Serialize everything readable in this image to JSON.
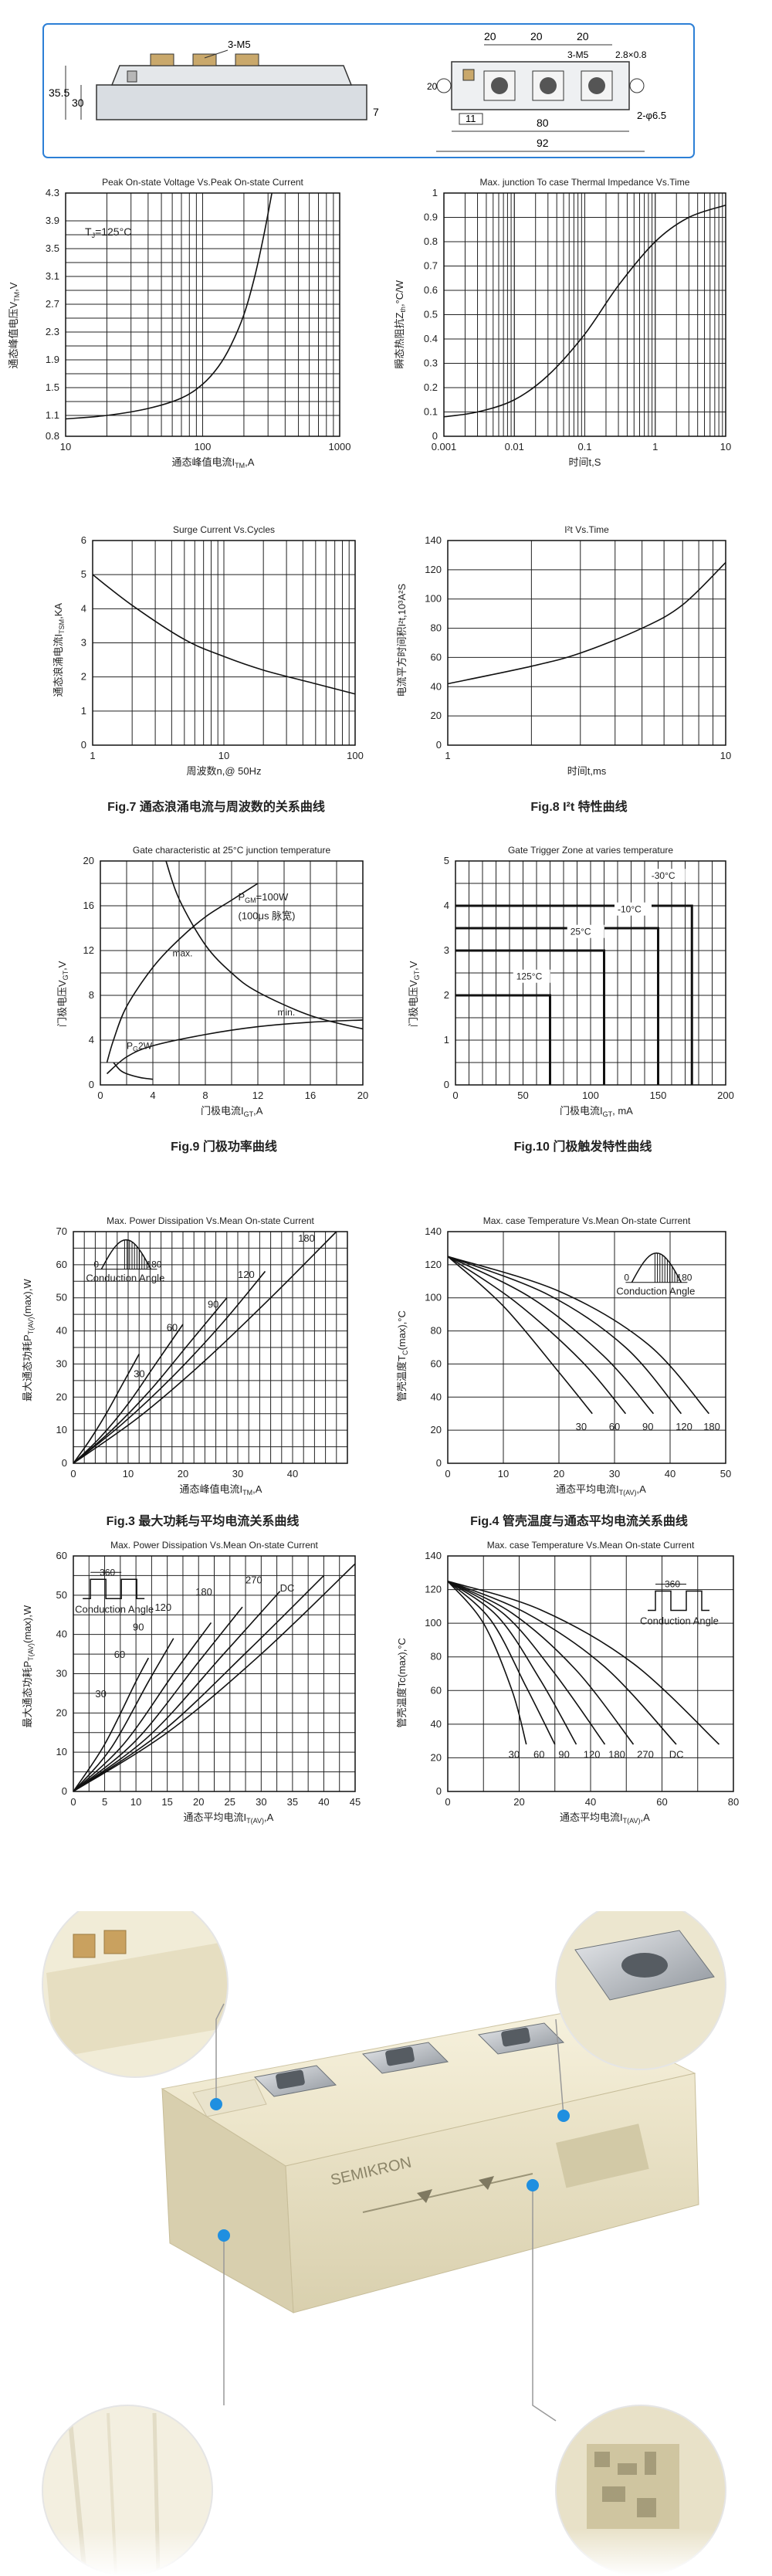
{
  "drawing": {
    "dims_h_left": "35.5",
    "dims_h_inner": "30",
    "screw_label": "3-M5",
    "screw_label2": "3-M5",
    "top_dims": [
      "20",
      "20",
      "20"
    ],
    "hole_spec": "2.8×0.8",
    "h20": "20",
    "h_seven": "7",
    "d_eleven": "11",
    "d_eighty": "80",
    "d_ninetytwo": "92",
    "hole_dia": "2-φ6.5"
  },
  "charts": {
    "c1": {
      "title": "Peak On-state Voltage Vs.Peak On-state Current",
      "ylabel": "通态峰值电压V",
      "ylabel_sub": "TM",
      "ylabel_unit": ",V",
      "xlabel": "通态峰值电流I",
      "xlabel_sub": "TM",
      "xlabel_unit": ",A",
      "annotation": "T",
      "annotation_sub": "J",
      "annotation_rest": "=125°C",
      "yticks": [
        "4.3",
        "3.9",
        "3.5",
        "3.1",
        "2.7",
        "2.3",
        "1.9",
        "1.5",
        "1.1",
        "0.8"
      ],
      "xticks": [
        "10",
        "100",
        "1000"
      ]
    },
    "c2": {
      "title": "Max. junction To case Thermal Impedance Vs.Time",
      "ylabel": "瞬态热阻抗Z",
      "ylabel_sub": "th",
      "ylabel_unit": ",°C/W",
      "xlabel": "时间t,S",
      "yticks": [
        "1",
        "0.9",
        "0.8",
        "0.7",
        "0.6",
        "0.5",
        "0.4",
        "0.3",
        "0.2",
        "0.1",
        "0"
      ],
      "xticks": [
        "0.001",
        "0.01",
        "0.1",
        "1",
        "10"
      ]
    },
    "c3": {
      "title": "Surge Current Vs.Cycles",
      "ylabel": "通态浪涌电流I",
      "ylabel_sub": "TSM",
      "ylabel_unit": ",KA",
      "xlabel": "周波数n,@ 50Hz",
      "yticks": [
        "6",
        "5",
        "4",
        "3",
        "2",
        "1",
        "0"
      ],
      "xticks": [
        "1",
        "10",
        "100"
      ],
      "caption": "Fig.7 通态浪涌电流与周波数的关系曲线"
    },
    "c4": {
      "title": "I²t Vs.Time",
      "ylabel": "电流平方时间积I²t,10³A²S",
      "xlabel": "时间t,ms",
      "yticks": [
        "140",
        "120",
        "100",
        "80",
        "60",
        "40",
        "20",
        "0"
      ],
      "xticks": [
        "1",
        "10"
      ],
      "caption": "Fig.8 I²t 特性曲线"
    },
    "c5": {
      "title": "Gate characteristic at 25°C junction temperature",
      "ylabel": "门极电压V",
      "ylabel_sub": "GT",
      "ylabel_unit": ",V",
      "xlabel": "门极电流I",
      "xlabel_sub": "GT",
      "xlabel_unit": ",A",
      "yticks": [
        "20",
        "16",
        "12",
        "8",
        "4",
        "0"
      ],
      "xticks": [
        "0",
        "4",
        "8",
        "12",
        "16",
        "20"
      ],
      "label_pgm": "P",
      "label_pgm_sub": "GM",
      "label_pgm_rest": "=100W",
      "label_pgm2": "(100μs 脉宽)",
      "label_max": "max.",
      "label_min": "min.",
      "label_pg": "P",
      "label_pg_sub": "G",
      "label_pg_rest": "2W",
      "caption": "Fig.9 门极功率曲线"
    },
    "c6": {
      "title": "Gate Trigger Zone at varies temperature",
      "ylabel": "门极电压V",
      "ylabel_sub": "GT",
      "ylabel_unit": ",V",
      "xlabel": "门极电流I",
      "xlabel_sub": "GT",
      "xlabel_unit": ", mA",
      "yticks": [
        "5",
        "4",
        "3",
        "2",
        "1",
        "0"
      ],
      "xticks": [
        "0",
        "50",
        "100",
        "150",
        "200"
      ],
      "zones": [
        "-30°C",
        "-10°C",
        "25°C",
        "125°C"
      ],
      "caption": "Fig.10 门极触发特性曲线"
    },
    "c7": {
      "title": "Max. Power Dissipation Vs.Mean On-state Current",
      "ylabel": "最大通态功耗P",
      "ylabel_sub": "T(AV)",
      "ylabel_unit": "(max),W",
      "xlabel": "通态峰值电流I",
      "xlabel_sub": "TM",
      "xlabel_unit": ",A",
      "yticks": [
        "70",
        "60",
        "50",
        "40",
        "30",
        "20",
        "10",
        "0"
      ],
      "xticks": [
        "0",
        "10",
        "20",
        "30",
        "40"
      ],
      "curve_labels": [
        "30",
        "60",
        "90",
        "120",
        "180"
      ],
      "inset_0": "0",
      "inset_180": "180",
      "inset_label": "Conduction Angle",
      "caption": "Fig.3 最大功耗与平均电流关系曲线"
    },
    "c8": {
      "title": "Max. case Temperature Vs.Mean On-state Current",
      "ylabel": "管壳温度T",
      "ylabel_sub": "C",
      "ylabel_unit": "(max),°C",
      "xlabel": "通态平均电流I",
      "xlabel_sub": "T(AV)",
      "xlabel_unit": ",A",
      "yticks": [
        "140",
        "120",
        "100",
        "80",
        "60",
        "40",
        "20",
        "0"
      ],
      "xticks": [
        "0",
        "10",
        "20",
        "30",
        "40",
        "50"
      ],
      "curve_labels": [
        "30",
        "60",
        "90",
        "120",
        "180"
      ],
      "inset_0": "0",
      "inset_180": "180",
      "inset_label": "Conduction Angle",
      "caption": "Fig.4 管壳温度与通态平均电流关系曲线"
    },
    "c9": {
      "title": "Max. Power Dissipation Vs.Mean On-state Current",
      "ylabel": "最大通态功耗P",
      "ylabel_sub": "T(AV)",
      "ylabel_unit": "(max),W",
      "xlabel": "通态平均电流I",
      "xlabel_sub": "T(AV)",
      "xlabel_unit": ",A",
      "yticks": [
        "60",
        "50",
        "40",
        "30",
        "20",
        "10",
        "0"
      ],
      "xticks": [
        "0",
        "5",
        "10",
        "15",
        "20",
        "25",
        "30",
        "35",
        "40",
        "45"
      ],
      "curve_labels": [
        "30",
        "60",
        "90",
        "120",
        "180",
        "270",
        "DC"
      ],
      "inset_360": "360",
      "inset_label": "Conduction Angle"
    },
    "c10": {
      "title": "Max. case Temperature Vs.Mean On-state Current",
      "ylabel": "管壳温度Tc(max),°C",
      "xlabel": "通态平均电流I",
      "xlabel_sub": "T(AV)",
      "xlabel_unit": ",A",
      "yticks": [
        "140",
        "120",
        "100",
        "80",
        "60",
        "40",
        "20",
        "0"
      ],
      "xticks": [
        "0",
        "20",
        "40",
        "60",
        "80"
      ],
      "curve_labels": [
        "30",
        "60",
        "90",
        "120",
        "180",
        "270",
        "DC"
      ],
      "inset_360": "360",
      "inset_label": "Conduction Angle"
    }
  },
  "photo": {
    "label_text": "SEMIKRON"
  },
  "chart_data": [
    {
      "type": "line",
      "title": "Peak On-state Voltage Vs.Peak On-state Current",
      "x_scale": "log",
      "xlim": [
        10,
        1000
      ],
      "ylim": [
        0.8,
        4.3
      ],
      "series": [
        {
          "x": [
            10,
            20,
            40,
            70,
            100,
            130,
            160,
            200,
            240,
            280,
            320
          ],
          "y": [
            1.05,
            1.1,
            1.2,
            1.35,
            1.55,
            1.8,
            2.1,
            2.55,
            3.1,
            3.7,
            4.3
          ]
        }
      ]
    },
    {
      "type": "line",
      "title": "Max. junction To case Thermal Impedance Vs.Time",
      "x_scale": "log",
      "xlim": [
        0.001,
        10
      ],
      "ylim": [
        0,
        1
      ],
      "series": [
        {
          "x": [
            0.001,
            0.003,
            0.01,
            0.03,
            0.1,
            0.3,
            1,
            3,
            10
          ],
          "y": [
            0.08,
            0.1,
            0.15,
            0.25,
            0.42,
            0.62,
            0.8,
            0.9,
            0.95
          ]
        }
      ]
    },
    {
      "type": "line",
      "title": "Surge Current Vs.Cycles",
      "x_scale": "log",
      "xlim": [
        1,
        100
      ],
      "ylim": [
        0,
        6
      ],
      "series": [
        {
          "x": [
            1,
            2,
            5,
            10,
            20,
            50,
            100
          ],
          "y": [
            5.0,
            4.1,
            3.1,
            2.6,
            2.2,
            1.8,
            1.5
          ]
        }
      ]
    },
    {
      "type": "line",
      "title": "I²t Vs.Time",
      "x_scale": "log",
      "xlim": [
        1,
        10
      ],
      "ylim": [
        0,
        140
      ],
      "series": [
        {
          "x": [
            1,
            2,
            3,
            5,
            7,
            10
          ],
          "y": [
            42,
            54,
            63,
            80,
            96,
            125
          ]
        }
      ]
    },
    {
      "type": "line",
      "title": "Gate characteristic at 25°C junction temperature",
      "xlim": [
        0,
        20
      ],
      "ylim": [
        0,
        20
      ],
      "series": [
        {
          "x": [
            0.5,
            1,
            2,
            4,
            6,
            8,
            10,
            12
          ],
          "y": [
            2,
            4,
            7,
            10.5,
            13,
            15,
            16.5,
            18
          ]
        },
        {
          "x": [
            0.5,
            2,
            4,
            8,
            12,
            16,
            20
          ],
          "y": [
            1,
            2.5,
            3.5,
            4.5,
            5.2,
            5.6,
            5.8
          ]
        },
        {
          "x": [
            5,
            6,
            8,
            10,
            12,
            16,
            20
          ],
          "y": [
            20,
            16.6,
            12.5,
            10,
            8.3,
            6.2,
            5
          ]
        },
        {
          "x": [
            1,
            1.5,
            2,
            3,
            4
          ],
          "y": [
            2,
            1.33,
            1,
            0.67,
            0.5
          ]
        }
      ]
    },
    {
      "type": "area",
      "title": "Gate Trigger Zone at varies temperature",
      "xlim": [
        0,
        200
      ],
      "ylim": [
        0,
        5
      ],
      "series": [
        {
          "name": "-30°C",
          "x": [
            0,
            175,
            175
          ],
          "y": [
            4,
            4,
            0
          ]
        },
        {
          "name": "-10°C",
          "x": [
            0,
            150,
            150
          ],
          "y": [
            3.5,
            3.5,
            0
          ]
        },
        {
          "name": "25°C",
          "x": [
            0,
            110,
            110
          ],
          "y": [
            3,
            3,
            0
          ]
        },
        {
          "name": "125°C",
          "x": [
            0,
            70,
            70
          ],
          "y": [
            2,
            2,
            0
          ]
        }
      ]
    },
    {
      "type": "line",
      "title": "Max. Power Dissipation Vs.Mean On-state Current",
      "xlim": [
        0,
        50
      ],
      "ylim": [
        0,
        70
      ],
      "series": [
        {
          "name": "30",
          "x": [
            0,
            3,
            6,
            9,
            12
          ],
          "y": [
            0,
            7,
            15,
            24,
            33
          ]
        },
        {
          "name": "60",
          "x": [
            0,
            5,
            10,
            15,
            20
          ],
          "y": [
            0,
            8,
            18,
            30,
            42
          ]
        },
        {
          "name": "90",
          "x": [
            0,
            7,
            14,
            21,
            28
          ],
          "y": [
            0,
            10,
            22,
            36,
            50
          ]
        },
        {
          "name": "120",
          "x": [
            0,
            9,
            18,
            27,
            35
          ],
          "y": [
            0,
            12,
            26,
            42,
            58
          ]
        },
        {
          "name": "180",
          "x": [
            0,
            12,
            24,
            36,
            48
          ],
          "y": [
            0,
            14,
            31,
            50,
            70
          ]
        }
      ]
    },
    {
      "type": "line",
      "title": "Max. case Temperature Vs.Mean On-state Current",
      "xlim": [
        0,
        50
      ],
      "ylim": [
        0,
        140
      ],
      "series": [
        {
          "name": "30",
          "x": [
            0,
            10,
            20,
            26
          ],
          "y": [
            125,
            95,
            55,
            30
          ]
        },
        {
          "name": "60",
          "x": [
            0,
            12,
            24,
            32
          ],
          "y": [
            125,
            98,
            62,
            30
          ]
        },
        {
          "name": "90",
          "x": [
            0,
            15,
            28,
            37
          ],
          "y": [
            125,
            100,
            65,
            30
          ]
        },
        {
          "name": "120",
          "x": [
            0,
            18,
            32,
            42
          ],
          "y": [
            125,
            102,
            70,
            30
          ]
        },
        {
          "name": "180",
          "x": [
            0,
            20,
            36,
            47
          ],
          "y": [
            125,
            104,
            72,
            30
          ]
        }
      ]
    },
    {
      "type": "line",
      "title": "Max. Power Dissipation Vs.Mean On-state Current",
      "xlim": [
        0,
        45
      ],
      "ylim": [
        0,
        60
      ],
      "series": [
        {
          "name": "30",
          "x": [
            0,
            5,
            10,
            12
          ],
          "y": [
            0,
            12,
            28,
            34
          ]
        },
        {
          "name": "60",
          "x": [
            0,
            6,
            12,
            16
          ],
          "y": [
            0,
            11,
            28,
            39
          ]
        },
        {
          "name": "90",
          "x": [
            0,
            8,
            16,
            22
          ],
          "y": [
            0,
            12,
            30,
            43
          ]
        },
        {
          "name": "120",
          "x": [
            0,
            10,
            20,
            27
          ],
          "y": [
            0,
            13,
            33,
            47
          ]
        },
        {
          "name": "180",
          "x": [
            0,
            12,
            24,
            33
          ],
          "y": [
            0,
            14,
            35,
            51
          ]
        },
        {
          "name": "270",
          "x": [
            0,
            14,
            28,
            40
          ],
          "y": [
            0,
            15,
            36,
            55
          ]
        },
        {
          "name": "DC",
          "x": [
            0,
            15,
            30,
            45
          ],
          "y": [
            0,
            15,
            35,
            58
          ]
        }
      ]
    },
    {
      "type": "line",
      "title": "Max. case Temperature Vs.Mean On-state Current",
      "xlim": [
        0,
        80
      ],
      "ylim": [
        0,
        140
      ],
      "series": [
        {
          "name": "30",
          "x": [
            0,
            10,
            18,
            22
          ],
          "y": [
            125,
            100,
            60,
            28
          ]
        },
        {
          "name": "60",
          "x": [
            0,
            12,
            22,
            30
          ],
          "y": [
            125,
            102,
            62,
            28
          ]
        },
        {
          "name": "90",
          "x": [
            0,
            14,
            26,
            36
          ],
          "y": [
            125,
            104,
            66,
            28
          ]
        },
        {
          "name": "120",
          "x": [
            0,
            16,
            30,
            44
          ],
          "y": [
            125,
            105,
            70,
            28
          ]
        },
        {
          "name": "180",
          "x": [
            0,
            18,
            36,
            52
          ],
          "y": [
            125,
            106,
            72,
            28
          ]
        },
        {
          "name": "270",
          "x": [
            0,
            22,
            44,
            64
          ],
          "y": [
            125,
            106,
            74,
            28
          ]
        },
        {
          "name": "DC",
          "x": [
            0,
            26,
            52,
            76
          ],
          "y": [
            125,
            108,
            76,
            28
          ]
        }
      ]
    }
  ]
}
